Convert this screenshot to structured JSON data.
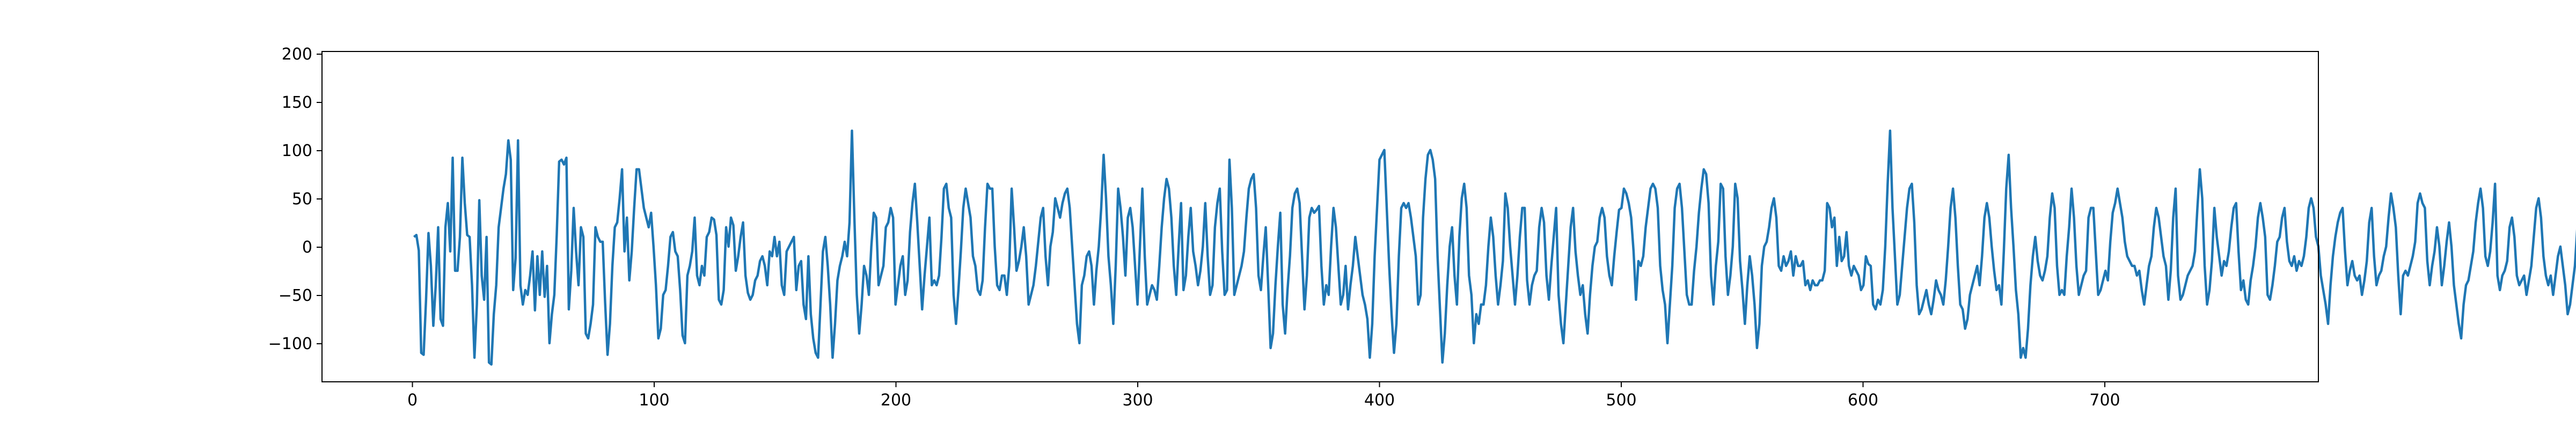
{
  "chart_data": {
    "type": "line",
    "title": "",
    "xlabel": "",
    "ylabel": "",
    "xlim": [
      -38,
      787
    ],
    "ylim": [
      -140,
      202
    ],
    "x_ticks": [
      "0",
      "100",
      "200",
      "300",
      "400",
      "500",
      "600",
      "700"
    ],
    "y_ticks": [
      "200",
      "150",
      "100",
      "50",
      "0",
      "−50",
      "−100"
    ],
    "grid": false,
    "legend": "none",
    "series": [
      {
        "color": "#1f77b4",
        "x_start": 0,
        "x_step": 1,
        "values": [
          10,
          12,
          -4,
          -110,
          -112,
          -55,
          14,
          -20,
          -82,
          -40,
          20,
          -75,
          -82,
          20,
          45,
          -5,
          92,
          -25,
          -25,
          10,
          92,
          45,
          12,
          10,
          -40,
          -115,
          -60,
          48,
          -30,
          -55,
          10,
          -120,
          -122,
          -70,
          -40,
          20,
          40,
          60,
          75,
          110,
          90,
          -45,
          -12,
          110,
          -40,
          -60,
          -45,
          -50,
          -30,
          -5,
          -66,
          -10,
          -50,
          -5,
          -52,
          -20,
          -100,
          -70,
          -50,
          12,
          88,
          90,
          85,
          92,
          -65,
          -25,
          40,
          -5,
          -40,
          20,
          10,
          -90,
          -95,
          -80,
          -60,
          20,
          10,
          5,
          5,
          -58,
          -112,
          -80,
          -20,
          20,
          25,
          50,
          80,
          -5,
          30,
          -35,
          -5,
          40,
          80,
          80,
          60,
          40,
          30,
          20,
          35,
          0,
          -40,
          -95,
          -85,
          -50,
          -45,
          -20,
          10,
          15,
          -5,
          -10,
          -45,
          -92,
          -100,
          -30,
          -20,
          -5,
          30,
          -30,
          -40,
          -20,
          -30,
          10,
          15,
          30,
          28,
          12,
          -55,
          -60,
          -45,
          20,
          0,
          30,
          22,
          -25,
          -10,
          10,
          25,
          -30,
          -48,
          -55,
          -50,
          -35,
          -30,
          -15,
          -10,
          -20,
          -40,
          -5,
          -10,
          10,
          -10,
          5,
          -40,
          -50,
          -5,
          0,
          5,
          10,
          -45,
          -20,
          -15,
          -60,
          -75,
          -10,
          -70,
          -95,
          -110,
          -115,
          -60,
          -5,
          10,
          -20,
          -60,
          -115,
          -80,
          -35,
          -20,
          -10,
          5,
          -10,
          25,
          120,
          30,
          -50,
          -90,
          -60,
          -20,
          -30,
          -50,
          0,
          35,
          30,
          -40,
          -30,
          -20,
          20,
          25,
          40,
          30,
          -60,
          -40,
          -20,
          -10,
          -50,
          -35,
          15,
          45,
          65,
          25,
          -20,
          -65,
          -30,
          0,
          30,
          -40,
          -35,
          -40,
          -30,
          10,
          60,
          65,
          40,
          30,
          -50,
          -80,
          -45,
          -5,
          40,
          60,
          45,
          30,
          -10,
          -20,
          -45,
          -50,
          -35,
          20,
          65,
          60,
          60,
          0,
          -40,
          -45,
          -30,
          -30,
          -50,
          -20,
          60,
          20,
          -25,
          -15,
          0,
          20,
          -10,
          -60,
          -50,
          -40,
          -20,
          5,
          30,
          40,
          -10,
          -40,
          0,
          15,
          50,
          40,
          30,
          45,
          55,
          60,
          40,
          0,
          -40,
          -80,
          -100,
          -40,
          -30,
          -10,
          -5,
          -20,
          -60,
          -25,
          0,
          40,
          95,
          50,
          -10,
          -40,
          -80,
          -20,
          60,
          40,
          10,
          -30,
          30,
          40,
          20,
          -20,
          -60,
          0,
          60,
          -10,
          -60,
          -50,
          -40,
          -45,
          -55,
          -20,
          20,
          50,
          70,
          60,
          30,
          -20,
          -50,
          0,
          45,
          -45,
          -30,
          10,
          40,
          -5,
          -20,
          -40,
          -25,
          0,
          45,
          -10,
          -50,
          -40,
          20,
          45,
          60,
          -5,
          -50,
          -45,
          90,
          40,
          -50,
          -40,
          -30,
          -20,
          -5,
          30,
          60,
          70,
          75,
          40,
          -30,
          -45,
          -10,
          20,
          -40,
          -105,
          -90,
          -40,
          0,
          35,
          -60,
          -90,
          -45,
          -10,
          40,
          55,
          60,
          45,
          -10,
          -65,
          -30,
          30,
          40,
          35,
          38,
          42,
          -20,
          -60,
          -40,
          -50,
          0,
          40,
          20,
          -20,
          -60,
          -50,
          -20,
          -65,
          -40,
          -20,
          10,
          -10,
          -30,
          -50,
          -60,
          -75,
          -115,
          -80,
          -10,
          40,
          90,
          95,
          100,
          40,
          -20,
          -70,
          -110,
          -80,
          -10,
          40,
          45,
          40,
          45,
          30,
          10,
          -10,
          -60,
          -50,
          30,
          70,
          95,
          100,
          90,
          70,
          -10,
          -65,
          -120,
          -90,
          -40,
          0,
          20,
          -30,
          -60,
          10,
          50,
          65,
          40,
          -30,
          -50,
          -100,
          -70,
          -80,
          -60,
          -60,
          -40,
          0,
          30,
          10,
          -30,
          -60,
          -40,
          -15,
          55,
          40,
          0,
          -30,
          -60,
          -30,
          10,
          40,
          40,
          -35,
          -60,
          -40,
          -30,
          -25,
          20,
          40,
          25,
          -30,
          -55,
          -20,
          10,
          40,
          -50,
          -80,
          -100,
          -60,
          -20,
          20,
          40,
          -5,
          -30,
          -50,
          -40,
          -70,
          -90,
          -50,
          -20,
          0,
          5,
          30,
          40,
          30,
          -10,
          -30,
          -40,
          -10,
          15,
          38,
          40,
          60,
          55,
          45,
          30,
          -5,
          -55,
          -15,
          -20,
          -10,
          20,
          40,
          60,
          65,
          60,
          40,
          -20,
          -45,
          -60,
          -100,
          -60,
          -20,
          40,
          60,
          65,
          40,
          -5,
          -50,
          -60,
          -60,
          -25,
          0,
          35,
          60,
          80,
          75,
          45,
          -30,
          -60,
          -20,
          5,
          65,
          60,
          -10,
          -50,
          -30,
          0,
          65,
          50,
          -15,
          -45,
          -80,
          -40,
          -10,
          -30,
          -60,
          -105,
          -80,
          -20,
          0,
          5,
          20,
          40,
          50,
          30,
          -20,
          -25,
          -10,
          -20,
          -15,
          -5,
          -30,
          -10,
          -20,
          -20,
          -15,
          -40,
          -35,
          -45,
          -35,
          -40,
          -40,
          -35,
          -35,
          -25,
          45,
          40,
          20,
          30,
          -20,
          10,
          -15,
          -10,
          15,
          -20,
          -30,
          -20,
          -25,
          -30,
          -45,
          -40,
          -10,
          -18,
          -20,
          -60,
          -65,
          -55,
          -60,
          -45,
          0,
          65,
          120,
          40,
          -10,
          -60,
          -50,
          -20,
          10,
          40,
          60,
          65,
          25,
          -40,
          -70,
          -65,
          -55,
          -45,
          -60,
          -70,
          -55,
          -35,
          -45,
          -50,
          -60,
          -35,
          0,
          40,
          60,
          30,
          -20,
          -60,
          -65,
          -85,
          -75,
          -50,
          -40,
          -30,
          -20,
          -40,
          -10,
          30,
          45,
          30,
          0,
          -25,
          -45,
          -40,
          -60,
          -5,
          60,
          95,
          40,
          0,
          -45,
          -70,
          -115,
          -105,
          -115,
          -85,
          -40,
          -10,
          10,
          -15,
          -30,
          -35,
          -25,
          -10,
          30,
          55,
          40,
          -20,
          -50,
          -45,
          -50,
          -10,
          20,
          60,
          30,
          -20,
          -50,
          -40,
          -30,
          -25,
          30,
          40,
          40,
          -5,
          -50,
          -45,
          -35,
          -25,
          -35,
          5,
          35,
          45,
          60,
          45,
          30,
          5,
          -10,
          -15,
          -20,
          -20,
          -30,
          -25,
          -45,
          -60,
          -40,
          -20,
          -10,
          20,
          40,
          30,
          10,
          -10,
          -20,
          -55,
          -25,
          30,
          60,
          -30,
          -55,
          -50,
          -40,
          -30,
          -25,
          -20,
          -5,
          40,
          80,
          50,
          -20,
          -60,
          -45,
          -15,
          40,
          10,
          -10,
          -30,
          -15,
          -20,
          -5,
          20,
          40,
          45,
          -5,
          -45,
          -35,
          -55,
          -60,
          -35,
          -20,
          0,
          30,
          45,
          30,
          10,
          -50,
          -55,
          -40,
          -20,
          5,
          10,
          30,
          40,
          5,
          -15,
          -20,
          -10,
          -25,
          -15,
          -20,
          -10,
          10,
          40,
          50,
          40,
          10,
          0,
          -30,
          -45,
          -60,
          -80,
          -40,
          -10,
          10,
          25,
          35,
          40,
          -5,
          -40,
          -25,
          -15,
          -30,
          -35,
          -30,
          -50,
          -35,
          -15,
          25,
          40,
          -10,
          -40,
          -30,
          -25,
          -10,
          0,
          30,
          55,
          40,
          20,
          -30,
          -70,
          -30,
          -25,
          -30,
          -20,
          -10,
          5,
          45,
          55,
          45,
          40,
          -15,
          -40,
          -20,
          -5,
          20,
          0,
          -40,
          -20,
          5,
          25,
          0,
          -40,
          -60,
          -80,
          -95,
          -60,
          -40,
          -35,
          -20,
          -5,
          25,
          45,
          60,
          40,
          -10,
          -20,
          -5,
          25,
          65,
          -30,
          -45,
          -30,
          -25,
          -15,
          20,
          30,
          10,
          -30,
          -40,
          -35,
          -30,
          -50,
          -35,
          -20,
          10,
          40,
          50,
          30,
          -10,
          -30,
          -40,
          -30,
          -50,
          -30,
          -10,
          0,
          -20,
          -40,
          -70,
          -60,
          -40,
          -20,
          20,
          50,
          30,
          10,
          -10,
          -15,
          -30,
          -45,
          -40,
          -20,
          10,
          40,
          30,
          -10,
          -30,
          -40,
          -20,
          -5,
          10,
          40,
          30,
          -20,
          -45,
          -40,
          -50,
          -45,
          -30,
          -20,
          -5,
          15,
          30,
          20,
          0,
          -20,
          -10,
          10,
          -15,
          -40,
          -55,
          -40,
          -30,
          -20,
          0,
          10,
          25,
          10,
          -20,
          -40,
          -60,
          -50,
          -20,
          0,
          20,
          30,
          35,
          30,
          -10,
          -20,
          -15,
          0,
          5,
          -10,
          -15,
          -25,
          -35,
          -30,
          -20,
          -5,
          20,
          -20,
          -60,
          -30,
          -10,
          -20,
          -50,
          -55,
          -45,
          -20,
          15,
          45,
          35,
          40,
          30,
          10,
          -10,
          -30,
          -50,
          -60,
          -45,
          -20,
          15,
          45,
          55,
          30,
          20,
          0,
          -10,
          -30,
          -20,
          0,
          25,
          40,
          50,
          30,
          0,
          -20,
          -50,
          -70,
          -40,
          -10,
          15,
          40,
          35,
          30,
          -10,
          -40,
          -70,
          -30,
          -5,
          20,
          30,
          -10,
          -30,
          -20,
          -15,
          -30,
          -40,
          -35,
          -20,
          0,
          15,
          40,
          45,
          30,
          10,
          -5,
          -20,
          -30,
          -40,
          -50,
          -30,
          -15,
          10,
          40,
          55,
          50,
          35,
          0,
          -25,
          -40,
          -30,
          -10,
          15,
          35,
          45,
          20,
          -10,
          -25,
          -40,
          -20,
          -5,
          10,
          35,
          50,
          45,
          30,
          0,
          -20,
          -35,
          -30,
          -15,
          0,
          20,
          35,
          45,
          35,
          10,
          -15,
          -30,
          -40,
          -20,
          -5,
          10,
          20,
          25,
          20,
          5,
          -10,
          -25,
          -40,
          -35,
          -20,
          0,
          15,
          30,
          35,
          30,
          15,
          0,
          -20,
          -40,
          -55,
          -50,
          -35,
          -15,
          5,
          25,
          35,
          40,
          25,
          5,
          -15,
          -30,
          -40,
          -30,
          -15,
          0,
          10,
          20,
          25,
          20,
          10,
          -5,
          -15,
          -25,
          -30,
          -20,
          -10,
          0,
          10,
          15,
          20,
          15,
          5,
          -5,
          -10,
          -15,
          -12,
          -8,
          -10
        ]
      }
    ]
  }
}
